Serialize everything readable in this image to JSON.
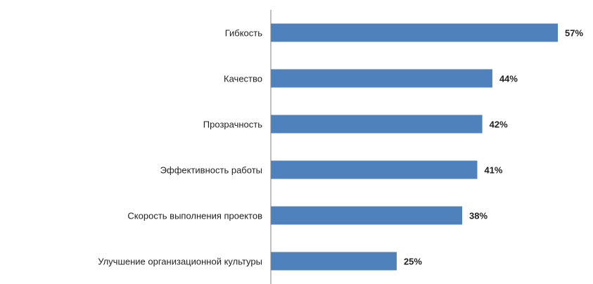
{
  "chart_data": {
    "type": "bar",
    "orientation": "horizontal",
    "categories": [
      "Гибкость",
      "Качество",
      "Прозрачность",
      "Эффективность работы",
      "Скорость выполнения проектов",
      "Улучшение организационной культуры"
    ],
    "values": [
      57,
      44,
      42,
      41,
      38,
      25
    ],
    "value_labels": [
      "57%",
      "44%",
      "42%",
      "41%",
      "38%",
      "25%"
    ],
    "unit": "%",
    "xlim": [
      0,
      57
    ],
    "grid": false,
    "legend": "none",
    "bar_color": "#4f81bd",
    "axis_color": "#7f7f7f"
  }
}
